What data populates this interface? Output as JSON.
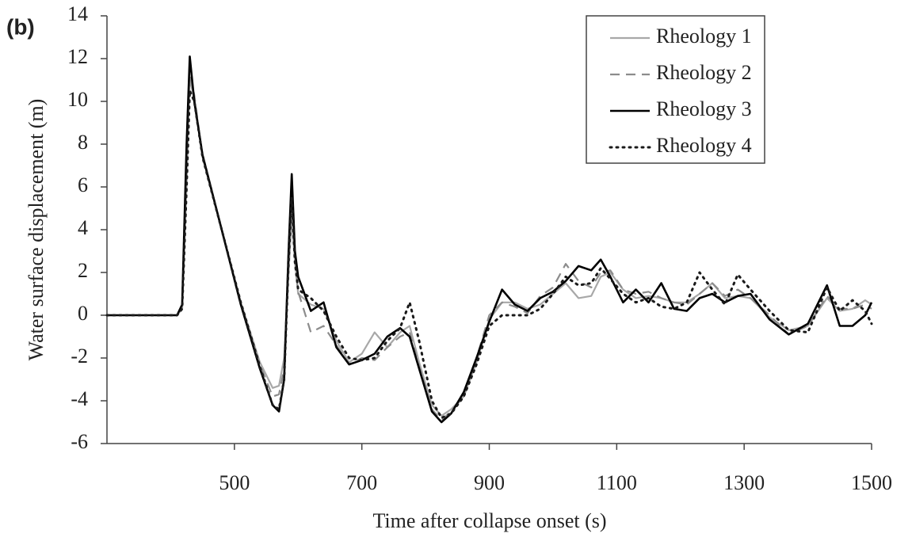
{
  "chart_data": {
    "type": "line",
    "panel_label": "(b)",
    "x_label": "Time after collapse onset (s)",
    "y_label": "Water surface displacement (m)",
    "xlim": [
      300,
      1500
    ],
    "xticks": [
      500,
      700,
      900,
      1100,
      1300,
      1500
    ],
    "ylim": [
      -6,
      14
    ],
    "yticks": [
      -6,
      -4,
      -2,
      0,
      2,
      4,
      6,
      8,
      10,
      12,
      14
    ],
    "legend": "upper right",
    "x": [
      300,
      410,
      418,
      425,
      430,
      437,
      450,
      480,
      510,
      540,
      560,
      570,
      578,
      585,
      590,
      595,
      600,
      620,
      640,
      660,
      680,
      700,
      720,
      740,
      760,
      775,
      790,
      810,
      825,
      840,
      860,
      880,
      900,
      920,
      940,
      960,
      980,
      1000,
      1020,
      1040,
      1060,
      1075,
      1090,
      1110,
      1130,
      1150,
      1170,
      1190,
      1210,
      1230,
      1250,
      1270,
      1290,
      1310,
      1340,
      1370,
      1400,
      1430,
      1450,
      1470,
      1490,
      1500
    ],
    "series": [
      {
        "name": "Rheology 1",
        "color": "#a8a8a8",
        "linestyle": "solid",
        "values": [
          0,
          0,
          0.3,
          6,
          11,
          10.2,
          7.4,
          4,
          0.6,
          -2.2,
          -3.4,
          -3.3,
          -2,
          2,
          4.5,
          2.5,
          1,
          0.5,
          0.3,
          -1.2,
          -2.2,
          -1.8,
          -0.8,
          -1.5,
          -0.8,
          -0.5,
          -2.2,
          -4.2,
          -4.7,
          -4.4,
          -3.8,
          -2.2,
          -0.2,
          0.6,
          0.6,
          0.3,
          0.5,
          1,
          1.5,
          0.8,
          0.9,
          1.8,
          2,
          1.2,
          0.8,
          0.9,
          0.8,
          0.6,
          0.6,
          1,
          1.5,
          0.8,
          0.9,
          0.8,
          -0.1,
          -0.7,
          -0.5,
          0.8,
          0.2,
          0.3,
          0.7,
          0.5
        ]
      },
      {
        "name": "Rheology 2",
        "color": "#8c8c8c",
        "linestyle": "dashed",
        "values": [
          0,
          0,
          0.3,
          7,
          11.3,
          10.3,
          7.4,
          4,
          0.6,
          -2.3,
          -3.8,
          -3.7,
          -2.5,
          2.5,
          5.2,
          2.6,
          1.1,
          -0.8,
          -0.5,
          -1.4,
          -2.3,
          -2,
          -2.1,
          -1.5,
          -1,
          -0.8,
          -2.4,
          -4.4,
          -4.9,
          -4.5,
          -3.8,
          -2,
          0,
          0.6,
          0.4,
          0.1,
          0.9,
          1.3,
          2.4,
          1.6,
          1.3,
          2,
          2.1,
          1.2,
          1,
          1.1,
          0.8,
          0.6,
          0.5,
          1,
          1.5,
          0.9,
          1.2,
          0.8,
          0,
          -0.9,
          -0.5,
          0.9,
          0.3,
          0.3,
          0.5,
          0.3
        ]
      },
      {
        "name": "Rheology 3",
        "color": "#000000",
        "linestyle": "solid",
        "values": [
          0,
          0,
          0.5,
          8,
          12.1,
          10,
          7.5,
          4,
          0.5,
          -2.5,
          -4.2,
          -4.5,
          -3,
          3,
          6.6,
          3,
          1.8,
          0.2,
          0.6,
          -1.5,
          -2.3,
          -2.1,
          -1.8,
          -1,
          -0.6,
          -1,
          -2.5,
          -4.5,
          -5,
          -4.6,
          -3.6,
          -2,
          -0.3,
          1.2,
          0.5,
          0.2,
          0.8,
          1.1,
          1.6,
          2.3,
          2.1,
          2.6,
          1.8,
          0.6,
          1.2,
          0.6,
          1.5,
          0.3,
          0.2,
          0.8,
          1,
          0.6,
          0.9,
          1,
          -0.2,
          -0.9,
          -0.4,
          1.4,
          -0.5,
          -0.5,
          0,
          0.6
        ]
      },
      {
        "name": "Rheology 4",
        "color": "#1a1a1a",
        "linestyle": "dotted",
        "values": [
          0,
          0,
          0.3,
          6,
          10.5,
          10,
          7.4,
          4,
          0.6,
          -2.4,
          -4.2,
          -4.4,
          -3,
          2.5,
          5.5,
          2.5,
          1.2,
          0.8,
          0.2,
          -1,
          -2,
          -2.1,
          -2,
          -1.2,
          -0.6,
          0.6,
          -1.2,
          -4,
          -4.8,
          -4.6,
          -3.8,
          -2.3,
          -0.5,
          0,
          0,
          0,
          0.3,
          1,
          1.8,
          1.4,
          1.5,
          2.2,
          1.7,
          1,
          0.6,
          0.8,
          0.4,
          0.3,
          0.6,
          2,
          1.2,
          0.5,
          1.9,
          1.2,
          0.2,
          -0.7,
          -0.8,
          1.3,
          0.2,
          0.7,
          0.2,
          -0.4
        ]
      }
    ]
  }
}
